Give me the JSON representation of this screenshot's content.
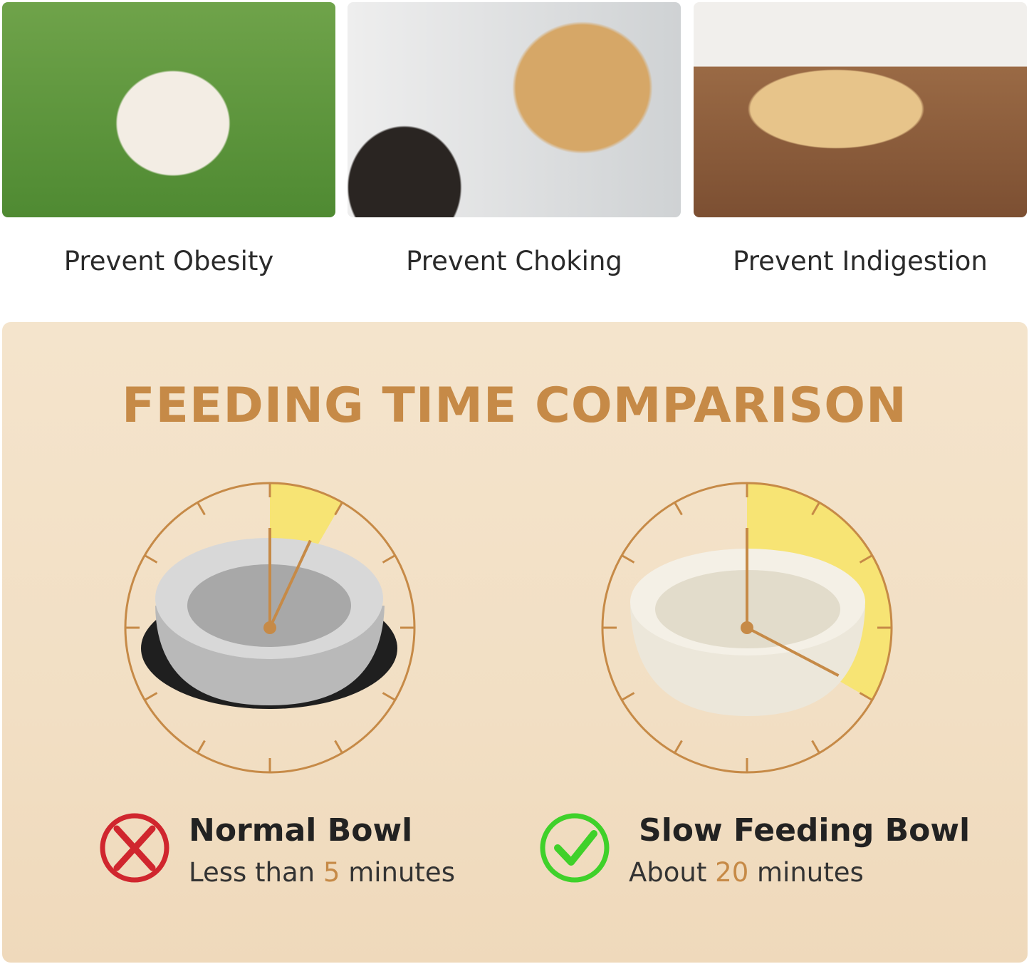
{
  "benefits": [
    {
      "caption": "Prevent Obesity",
      "image": "pug-on-grass"
    },
    {
      "caption": "Prevent Choking",
      "image": "golden-retriever-mouth-check"
    },
    {
      "caption": "Prevent Indigestion",
      "image": "labrador-lying-by-bowl"
    }
  ],
  "comparison": {
    "title": "FEEDING TIME COMPARISON",
    "accent": "#c68a47",
    "highlight": "#f7e46a",
    "items": [
      {
        "name": "Normal Bowl",
        "prefix": "Less than ",
        "minutes": "5",
        "suffix": " minutes",
        "icon": "x-circle-icon",
        "icon_color": "#d0262e",
        "clock_minutes": 5
      },
      {
        "name": "Slow Feeding Bowl",
        "prefix": "About ",
        "minutes": "20",
        "suffix": " minutes",
        "icon": "check-circle-icon",
        "icon_color": "#3fd12a",
        "clock_minutes": 20
      }
    ]
  }
}
